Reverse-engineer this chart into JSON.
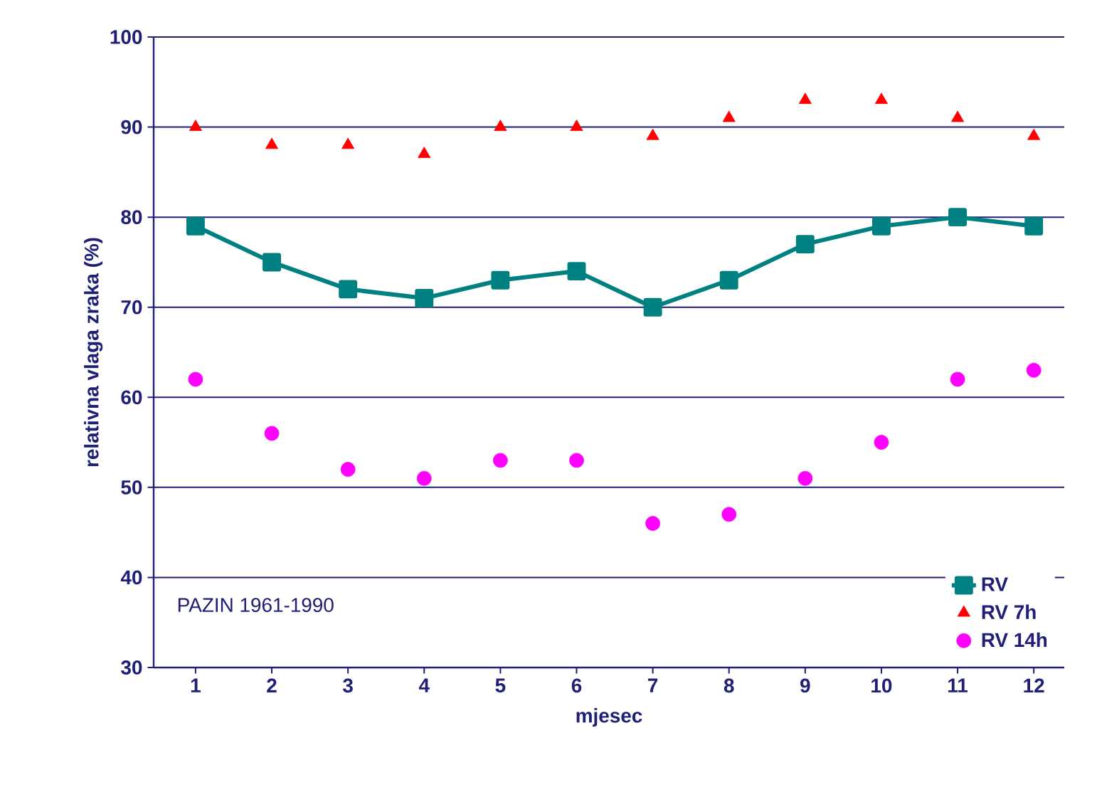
{
  "chart_data": {
    "type": "line",
    "xlabel": "mjesec",
    "ylabel": "relativna vlaga zraka (%)",
    "categories": [
      "1",
      "2",
      "3",
      "4",
      "5",
      "6",
      "7",
      "8",
      "9",
      "10",
      "11",
      "12"
    ],
    "series": [
      {
        "name": "RV",
        "marker": "square",
        "color": "#008080",
        "values": [
          79,
          75,
          72,
          71,
          73,
          74,
          70,
          73,
          77,
          79,
          80,
          79
        ]
      },
      {
        "name": "RV 7h",
        "type": "scatter",
        "marker": "triangle",
        "color": "#ff0000",
        "values": [
          90,
          88,
          88,
          87,
          90,
          90,
          89,
          91,
          93,
          93,
          91,
          89
        ]
      },
      {
        "name": "RV 14h",
        "type": "scatter",
        "marker": "circle",
        "color": "#ff00ff",
        "values": [
          62,
          56,
          52,
          51,
          53,
          53,
          46,
          47,
          51,
          55,
          62,
          63
        ]
      }
    ],
    "ylim": [
      30,
      100
    ],
    "yticks": [
      30,
      40,
      50,
      60,
      70,
      80,
      90,
      100
    ],
    "grid": "y",
    "legend": "bottom right",
    "annotations": [
      "PAZIN 1961-1990"
    ]
  }
}
